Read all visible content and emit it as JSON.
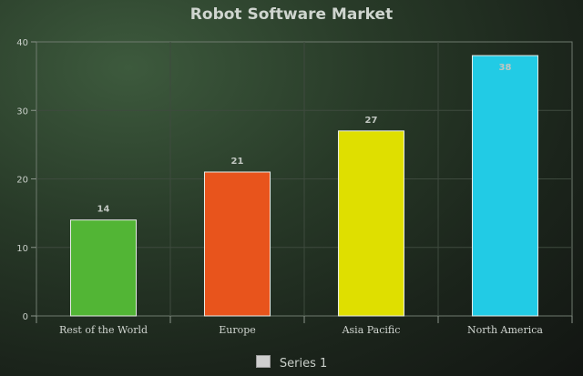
{
  "chart_data": {
    "type": "bar",
    "title": "Robot Software Market",
    "categories": [
      "Rest of the World",
      "Europe",
      "Asia Pacific",
      "North America"
    ],
    "series": [
      {
        "name": "Series 1",
        "values": [
          14,
          21,
          27,
          38
        ],
        "colors": [
          "#52b535",
          "#e8541c",
          "#dfdf00",
          "#22cbe5"
        ]
      }
    ],
    "y_ticks": [
      "0",
      "10",
      "20",
      "30",
      "40"
    ],
    "ylim": [
      0,
      40
    ],
    "grid": true,
    "legend_position": "bottom"
  }
}
